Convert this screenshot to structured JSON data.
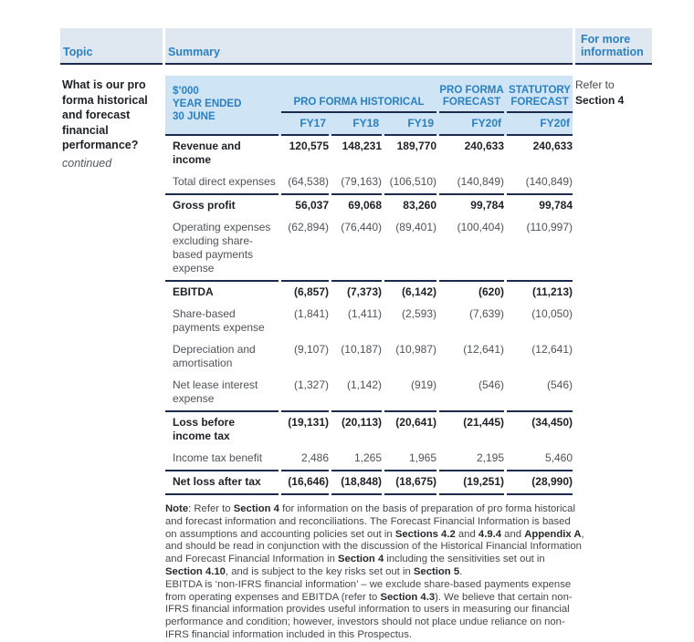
{
  "ui": {
    "band": {
      "topic": "Topic",
      "summary": "Summary",
      "more_info": "For more information"
    },
    "topic": {
      "question": "What is our pro forma historical and forecast financial performance?",
      "continued": "continued"
    },
    "info": {
      "refer": "Refer to",
      "section": "Section 4"
    }
  },
  "table": {
    "unit_header": [
      "$’000",
      "YEAR ENDED",
      "30 JUNE"
    ],
    "groups": [
      {
        "label": "PRO FORMA HISTORICAL",
        "cols": [
          "FY17",
          "FY18",
          "FY19"
        ]
      },
      {
        "label": "PRO FORMA FORECAST",
        "cols": [
          "FY20f"
        ]
      },
      {
        "label": "STATUTORY FORECAST",
        "cols": [
          "FY20f"
        ]
      }
    ],
    "rows": [
      {
        "label": "Revenue and income",
        "bold": true,
        "sep": false,
        "last": false,
        "values": [
          "120,575",
          "148,231",
          "189,770",
          "240,633",
          "240,633"
        ]
      },
      {
        "label": "Total direct expenses",
        "bold": false,
        "sep": false,
        "last": false,
        "values": [
          "(64,538)",
          "(79,163)",
          "(106,510)",
          "(140,849)",
          "(140,849)"
        ]
      },
      {
        "label": "Gross profit",
        "bold": true,
        "sep": true,
        "last": false,
        "values": [
          "56,037",
          "69,068",
          "83,260",
          "99,784",
          "99,784"
        ]
      },
      {
        "label": "Operating expenses excluding share-based payments expense",
        "bold": false,
        "sep": false,
        "last": false,
        "values": [
          "(62,894)",
          "(76,440)",
          "(89,401)",
          "(100,404)",
          "(110,997)"
        ]
      },
      {
        "label": "EBITDA",
        "bold": true,
        "sep": true,
        "last": false,
        "values": [
          "(6,857)",
          "(7,373)",
          "(6,142)",
          "(620)",
          "(11,213)"
        ]
      },
      {
        "label": "Share-based payments expense",
        "bold": false,
        "sep": false,
        "last": false,
        "values": [
          "(1,841)",
          "(1,411)",
          "(2,593)",
          "(7,639)",
          "(10,050)"
        ]
      },
      {
        "label": "Depreciation and amortisation",
        "bold": false,
        "sep": false,
        "last": false,
        "values": [
          "(9,107)",
          "(10,187)",
          "(10,987)",
          "(12,641)",
          "(12,641)"
        ]
      },
      {
        "label": "Net lease interest expense",
        "bold": false,
        "sep": false,
        "last": false,
        "values": [
          "(1,327)",
          "(1,142)",
          "(919)",
          "(546)",
          "(546)"
        ]
      },
      {
        "label": "Loss before income tax",
        "bold": true,
        "sep": true,
        "last": false,
        "values": [
          "(19,131)",
          "(20,113)",
          "(20,641)",
          "(21,445)",
          "(34,450)"
        ]
      },
      {
        "label": "Income tax benefit",
        "bold": false,
        "sep": false,
        "last": false,
        "values": [
          "2,486",
          "1,265",
          "1,965",
          "2,195",
          "5,460"
        ]
      },
      {
        "label": "Net loss after tax",
        "bold": true,
        "sep": true,
        "last": true,
        "values": [
          "(16,646)",
          "(18,848)",
          "(18,675)",
          "(19,251)",
          "(28,990)"
        ]
      }
    ]
  },
  "note": {
    "paragraphs": [
      [
        {
          "t": "Note",
          "b": true
        },
        {
          "t": ": Refer to "
        },
        {
          "t": "Section 4",
          "b": true
        },
        {
          "t": " for information on the basis of preparation of pro forma historical and forecast information and reconciliations. The Forecast Financial Information is based on assumptions and accounting policies set out in "
        },
        {
          "t": "Sections 4.2",
          "b": true
        },
        {
          "t": " and "
        },
        {
          "t": "4.9.4",
          "b": true
        },
        {
          "t": " and "
        },
        {
          "t": "Appendix A",
          "b": true
        },
        {
          "t": ", and should be read in conjunction with the discussion of the Historical Financial Information and Forecast Financial Information in "
        },
        {
          "t": "Section 4",
          "b": true
        },
        {
          "t": " including the sensitivities set out in "
        },
        {
          "t": "Section 4.10",
          "b": true
        },
        {
          "t": ", and is subject to the key risks set out in "
        },
        {
          "t": "Section 5",
          "b": true
        },
        {
          "t": "."
        }
      ],
      [
        {
          "t": "EBITDA is ‘non-IFRS financial information’ – we exclude share-based payments expense from operating expenses and EBITDA (refer to "
        },
        {
          "t": "Section 4.3",
          "b": true
        },
        {
          "t": "). We believe that certain non-IFRS financial information provides useful information to users in measuring our financial performance and condition; however, investors should not place undue reliance on non-IFRS financial information included in this Prospectus."
        }
      ]
    ]
  },
  "colors": {
    "accent_blue": "#2b80c3",
    "navy_rule": "#1c2b4d",
    "band_background": "#dfe8f1",
    "table_header_background": "#cfe4f4"
  }
}
